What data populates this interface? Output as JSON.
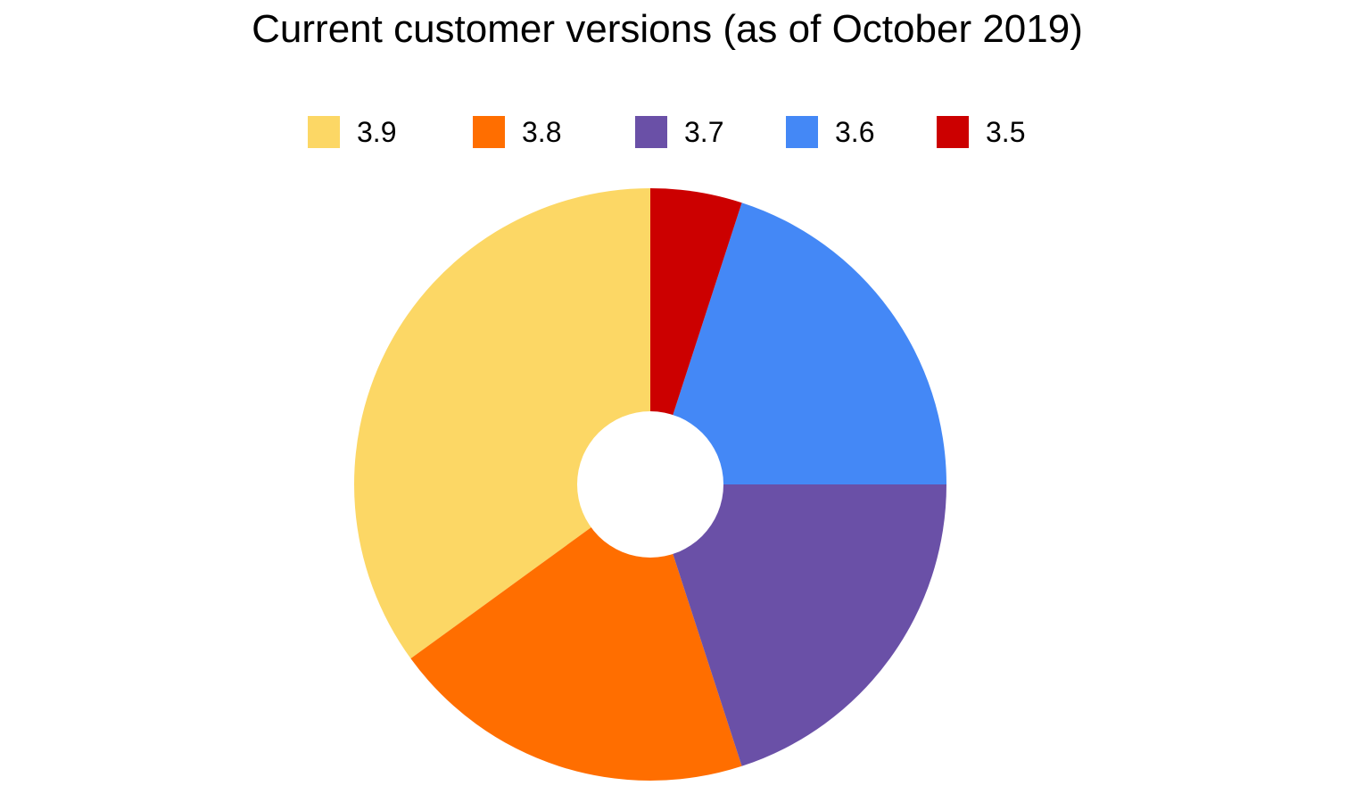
{
  "chart_data": {
    "type": "pie",
    "title": "Current customer versions (as of October 2019)",
    "categories": [
      "3.9",
      "3.8",
      "3.7",
      "3.6",
      "3.5"
    ],
    "values": [
      35,
      20,
      20,
      20,
      5
    ],
    "colors": [
      "#FCD765",
      "#FF6E00",
      "#6A50A7",
      "#4488F6",
      "#CC0000"
    ],
    "donut": true,
    "legend_position": "top",
    "start": "12 o'clock",
    "direction": "counterclockwise"
  }
}
